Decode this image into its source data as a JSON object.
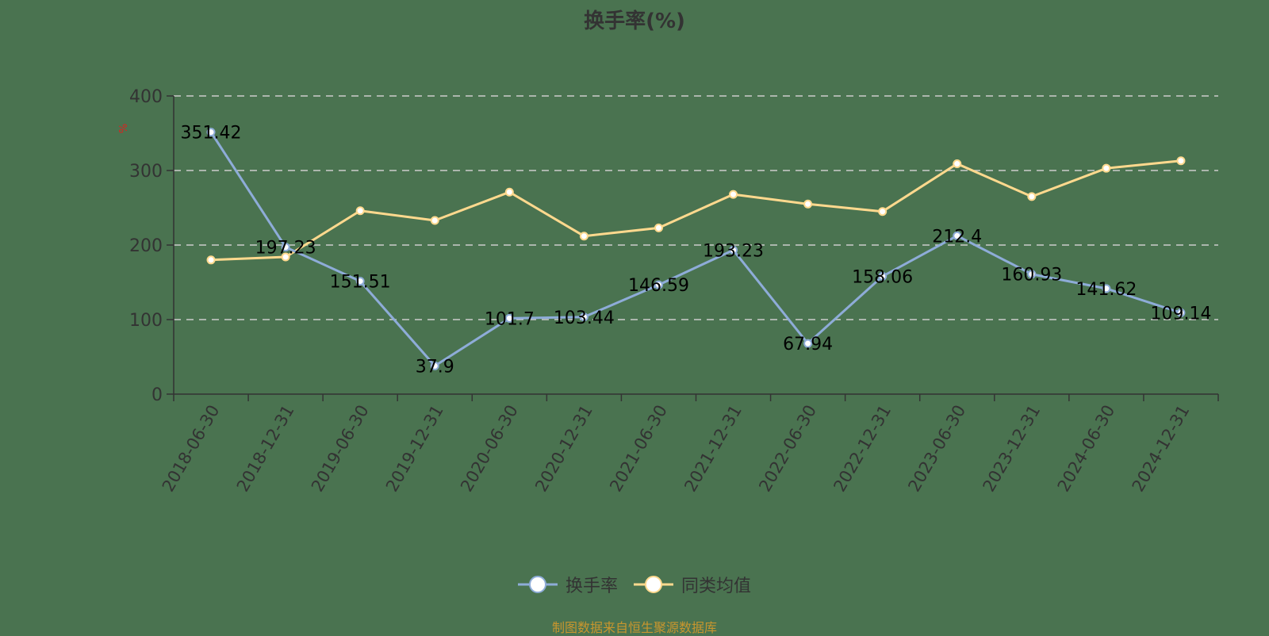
{
  "title": "换手率(%)",
  "footer": "制图数据来自恒生聚源数据库",
  "colors": {
    "background": "#4a7350",
    "series1": "#8eacd8",
    "series2": "#ffd98e",
    "grid": "#cccccc",
    "axis": "#333333",
    "unit": "#e0201e",
    "footer": "#c8962e"
  },
  "legend": [
    {
      "label": "换手率",
      "color": "#8eacd8"
    },
    {
      "label": "同类均值",
      "color": "#ffd98e"
    }
  ],
  "chart_data": {
    "type": "line",
    "title": "换手率(%)",
    "xlabel": "",
    "ylabel": "%",
    "ylim": [
      0,
      400
    ],
    "yticks": [
      0,
      100,
      200,
      300,
      400
    ],
    "grid": true,
    "legend_position": "bottom",
    "categories": [
      "2018-06-30",
      "2018-12-31",
      "2019-06-30",
      "2019-12-31",
      "2020-06-30",
      "2020-12-31",
      "2021-06-30",
      "2021-12-31",
      "2022-06-30",
      "2022-12-31",
      "2023-06-30",
      "2023-12-31",
      "2024-06-30",
      "2024-12-31"
    ],
    "series": [
      {
        "name": "换手率",
        "values": [
          351.42,
          197.23,
          151.51,
          37.9,
          101.7,
          103.44,
          146.59,
          193.23,
          67.94,
          158.06,
          212.4,
          160.93,
          141.62,
          109.14
        ],
        "labels_shown": true
      },
      {
        "name": "同类均值",
        "values": [
          180,
          184,
          246,
          233,
          271,
          212,
          223,
          268,
          255,
          245,
          309,
          265,
          303,
          313
        ],
        "labels_shown": false
      }
    ]
  }
}
